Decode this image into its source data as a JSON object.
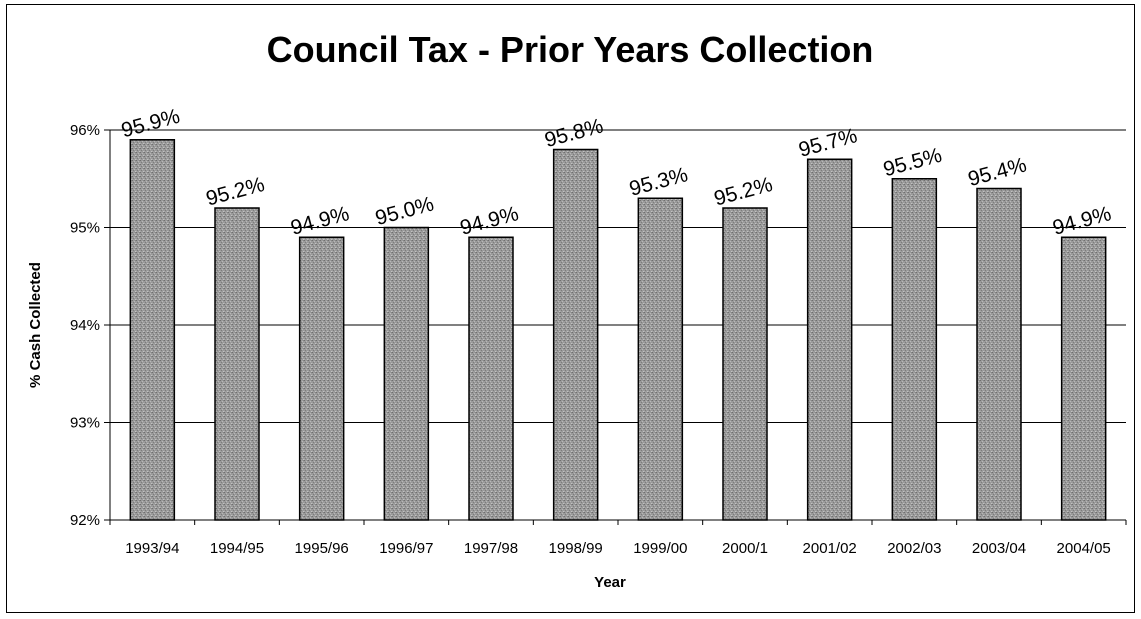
{
  "chart_data": {
    "type": "bar",
    "title": "Council Tax - Prior Years Collection",
    "xlabel": "Year",
    "ylabel": "% Cash Collected",
    "categories": [
      "1993/94",
      "1994/95",
      "1995/96",
      "1996/97",
      "1997/98",
      "1998/99",
      "1999/00",
      "2000/1",
      "2001/02",
      "2002/03",
      "2003/04",
      "2004/05"
    ],
    "values": [
      95.9,
      95.2,
      94.9,
      95.0,
      94.9,
      95.8,
      95.3,
      95.2,
      95.7,
      95.5,
      95.4,
      94.9
    ],
    "data_labels": [
      "95.9%",
      "95.2%",
      "94.9%",
      "95.0%",
      "94.9%",
      "95.8%",
      "95.3%",
      "95.2%",
      "95.7%",
      "95.5%",
      "95.4%",
      "94.9%"
    ],
    "ylim": [
      92,
      96
    ],
    "yticks": [
      92,
      93,
      94,
      95,
      96
    ],
    "ytick_labels": [
      "92%",
      "93%",
      "94%",
      "95%",
      "96%"
    ],
    "grid": true,
    "legend": "none",
    "bar_color": "#8a8a8a"
  }
}
